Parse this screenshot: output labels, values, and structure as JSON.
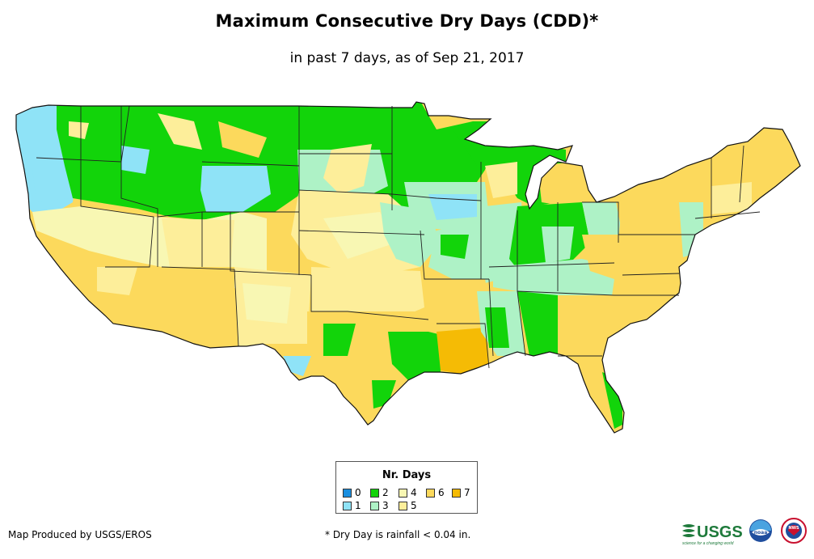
{
  "header": {
    "title": "Maximum Consecutive Dry Days (CDD)*",
    "subtitle": "in past 7 days, as of Sep 21, 2017"
  },
  "legend": {
    "title": "Nr. Days",
    "items": [
      {
        "label": "0",
        "color": "#1a8fe0"
      },
      {
        "label": "1",
        "color": "#8fe3f7"
      },
      {
        "label": "2",
        "color": "#12d40a"
      },
      {
        "label": "3",
        "color": "#aef2c6"
      },
      {
        "label": "4",
        "color": "#f8f7b3"
      },
      {
        "label": "5",
        "color": "#fdee9a"
      },
      {
        "label": "6",
        "color": "#fcd95c"
      },
      {
        "label": "7",
        "color": "#f5bb05"
      }
    ]
  },
  "footer": {
    "credit": "Map Produced by USGS/EROS",
    "note": "* Dry Day is rainfall < 0.04 in."
  },
  "logos": {
    "usgs_text": "USGS",
    "usgs_tagline": "science for a changing world",
    "noaa_text": "noaa",
    "nws_text": "NWS"
  }
}
